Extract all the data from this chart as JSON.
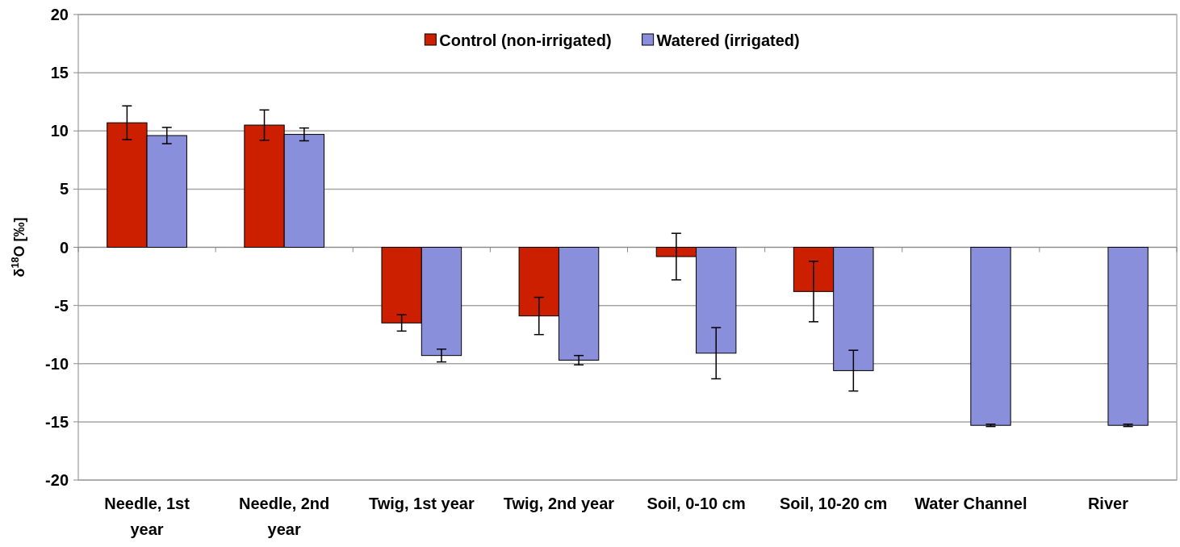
{
  "chart_data": {
    "type": "bar",
    "ylabel": "δ$^{18}$O [‰]",
    "categories": [
      "Needle, 1st year",
      "Needle, 2nd year",
      "Twig, 1st year",
      "Twig, 2nd year",
      "Soil, 0-10 cm",
      "Soil, 10-20 cm",
      "Water Channel",
      "River"
    ],
    "series": [
      {
        "name": "Control (non-irrigated)",
        "color": "#cc1f00",
        "values": [
          10.7,
          10.5,
          -6.5,
          -5.9,
          -0.8,
          -3.8,
          null,
          null
        ],
        "errors": [
          1.45,
          1.3,
          0.7,
          1.6,
          2.0,
          2.6,
          null,
          null
        ]
      },
      {
        "name": "Watered (irrigated)",
        "color": "#8a8fdc",
        "values": [
          9.6,
          9.7,
          -9.3,
          -9.7,
          -9.1,
          -10.6,
          -15.3,
          -15.3
        ],
        "errors": [
          0.7,
          0.55,
          0.55,
          0.4,
          2.2,
          1.75,
          0.1,
          0.1
        ]
      }
    ],
    "ylim": [
      -20,
      20
    ],
    "yticks": [
      -20,
      -15,
      -10,
      -5,
      0,
      5,
      10,
      15,
      20
    ],
    "grid": "y",
    "legend": "top"
  }
}
